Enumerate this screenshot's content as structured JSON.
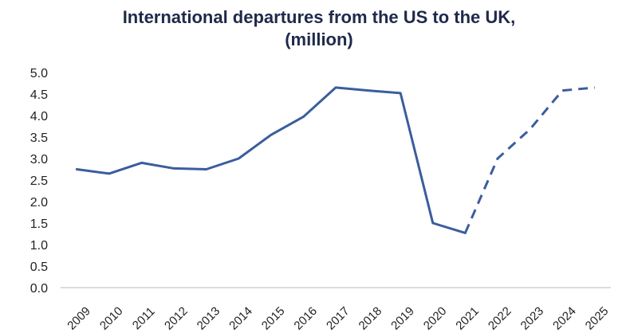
{
  "chart_data": {
    "type": "line",
    "title_line1": "International departures from the US to the UK,",
    "title_line2": "(million)",
    "xlabel": "",
    "ylabel": "",
    "ylim": [
      0,
      5
    ],
    "y_ticks": [
      "0.0",
      "0.5",
      "1.0",
      "1.5",
      "2.0",
      "2.5",
      "3.0",
      "3.5",
      "4.0",
      "4.5",
      "5.0"
    ],
    "categories": [
      "2009",
      "2010",
      "2011",
      "2012",
      "2013",
      "2014",
      "2015",
      "2016",
      "2017",
      "2018",
      "2019",
      "2020",
      "2021",
      "2022",
      "2023",
      "2024",
      "2025"
    ],
    "series": [
      {
        "values": [
          2.75,
          2.65,
          2.9,
          2.77,
          2.75,
          3.0,
          3.55,
          3.97,
          4.65,
          4.58,
          4.52,
          1.5,
          1.27,
          3.0,
          3.68,
          4.58,
          4.65
        ],
        "actual_through": "2021",
        "forecast_from": "2021",
        "color": "#3b5d9c"
      }
    ],
    "grid": false,
    "legend": "none"
  }
}
